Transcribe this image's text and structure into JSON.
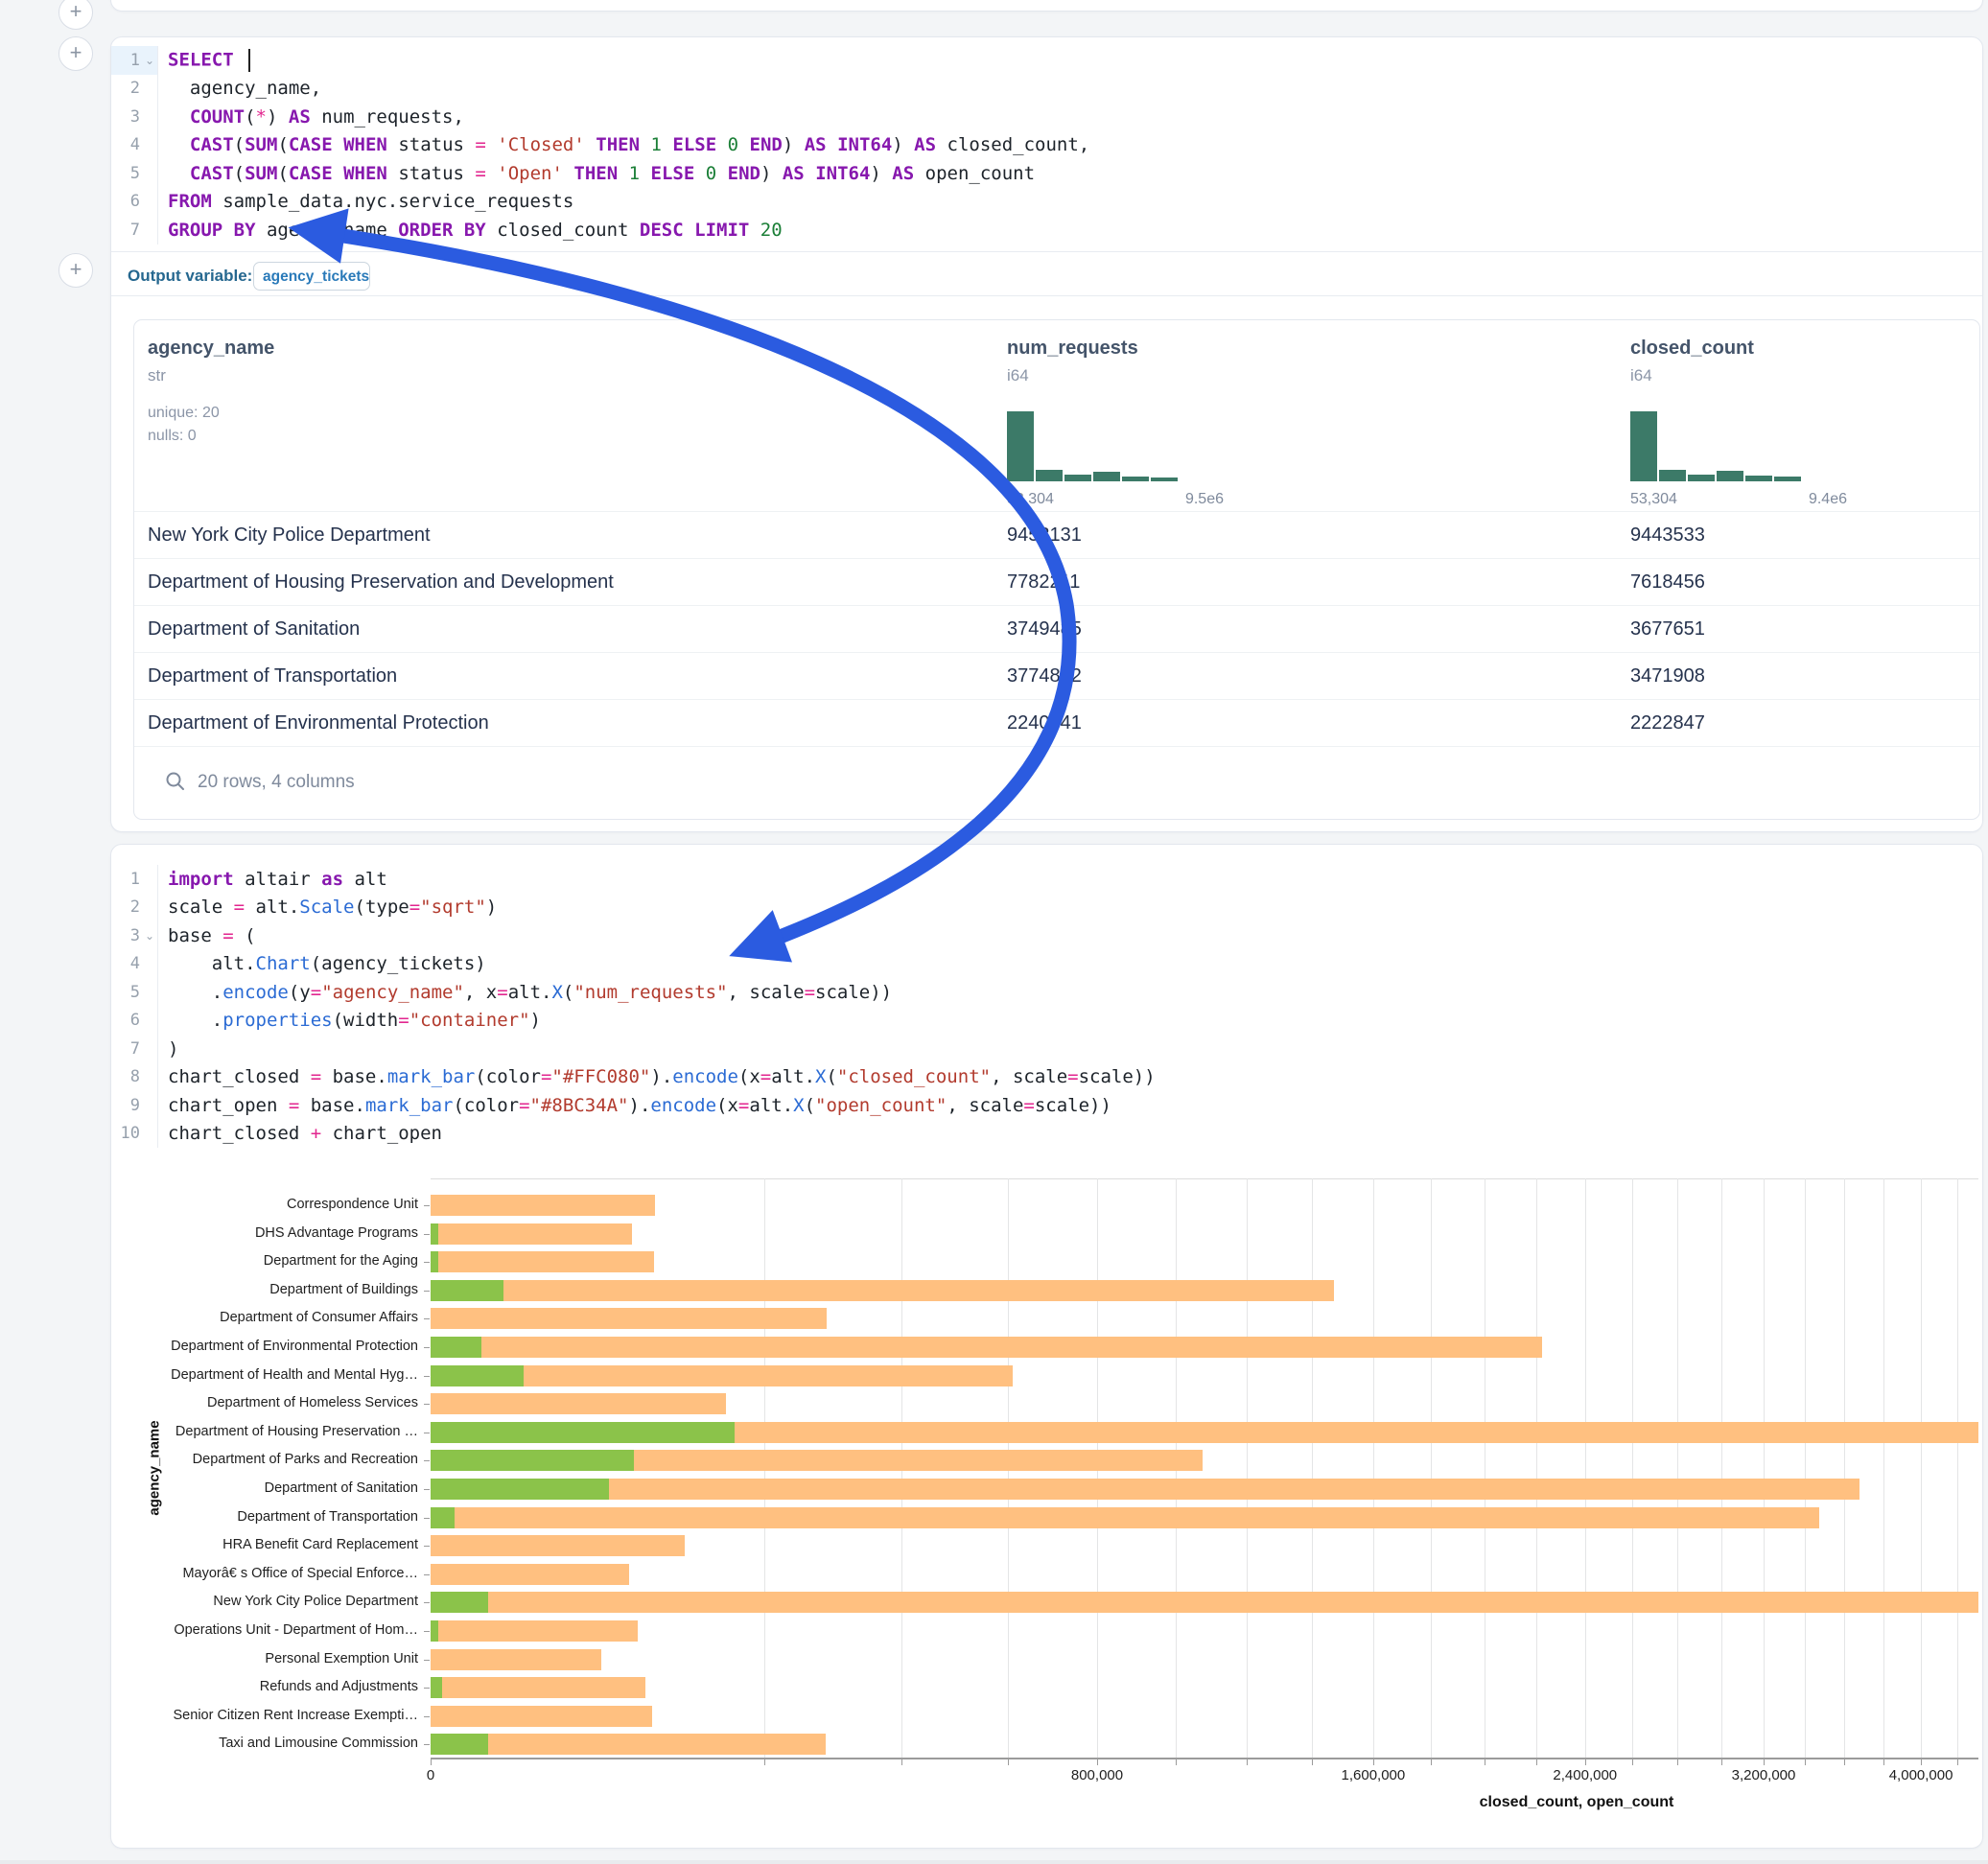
{
  "sql_cell": {
    "output_variable_label": "Output variable:",
    "output_variable_value": "agency_tickets",
    "lines": [
      {
        "n": "1",
        "chev": true,
        "active": true,
        "tokens": [
          [
            "k",
            "SELECT"
          ],
          [
            "t",
            " "
          ],
          [
            "caret",
            ""
          ]
        ]
      },
      {
        "n": "2",
        "tokens": [
          [
            "t",
            "  agency_name,"
          ]
        ]
      },
      {
        "n": "3",
        "tokens": [
          [
            "t",
            "  "
          ],
          [
            "k",
            "COUNT"
          ],
          [
            "t",
            "("
          ],
          [
            "o",
            "*"
          ],
          [
            "t",
            ") "
          ],
          [
            "k",
            "AS"
          ],
          [
            "t",
            " num_requests,"
          ]
        ]
      },
      {
        "n": "4",
        "tokens": [
          [
            "t",
            "  "
          ],
          [
            "k",
            "CAST"
          ],
          [
            "t",
            "("
          ],
          [
            "k",
            "SUM"
          ],
          [
            "t",
            "("
          ],
          [
            "k",
            "CASE"
          ],
          [
            "t",
            " "
          ],
          [
            "k",
            "WHEN"
          ],
          [
            "t",
            " status "
          ],
          [
            "o",
            "="
          ],
          [
            "t",
            " "
          ],
          [
            "s",
            "'Closed'"
          ],
          [
            "t",
            " "
          ],
          [
            "k",
            "THEN"
          ],
          [
            "t",
            " "
          ],
          [
            "n",
            "1"
          ],
          [
            "t",
            " "
          ],
          [
            "k",
            "ELSE"
          ],
          [
            "t",
            " "
          ],
          [
            "n",
            "0"
          ],
          [
            "t",
            " "
          ],
          [
            "k",
            "END"
          ],
          [
            "t",
            ") "
          ],
          [
            "k",
            "AS"
          ],
          [
            "t",
            " "
          ],
          [
            "k",
            "INT64"
          ],
          [
            "t",
            ") "
          ],
          [
            "k",
            "AS"
          ],
          [
            "t",
            " closed_count,"
          ]
        ]
      },
      {
        "n": "5",
        "tokens": [
          [
            "t",
            "  "
          ],
          [
            "k",
            "CAST"
          ],
          [
            "t",
            "("
          ],
          [
            "k",
            "SUM"
          ],
          [
            "t",
            "("
          ],
          [
            "k",
            "CASE"
          ],
          [
            "t",
            " "
          ],
          [
            "k",
            "WHEN"
          ],
          [
            "t",
            " status "
          ],
          [
            "o",
            "="
          ],
          [
            "t",
            " "
          ],
          [
            "s",
            "'Open'"
          ],
          [
            "t",
            " "
          ],
          [
            "k",
            "THEN"
          ],
          [
            "t",
            " "
          ],
          [
            "n",
            "1"
          ],
          [
            "t",
            " "
          ],
          [
            "k",
            "ELSE"
          ],
          [
            "t",
            " "
          ],
          [
            "n",
            "0"
          ],
          [
            "t",
            " "
          ],
          [
            "k",
            "END"
          ],
          [
            "t",
            ") "
          ],
          [
            "k",
            "AS"
          ],
          [
            "t",
            " "
          ],
          [
            "k",
            "INT64"
          ],
          [
            "t",
            ") "
          ],
          [
            "k",
            "AS"
          ],
          [
            "t",
            " open_count"
          ]
        ]
      },
      {
        "n": "6",
        "tokens": [
          [
            "k",
            "FROM"
          ],
          [
            "t",
            " sample_data.nyc.service_requests"
          ]
        ]
      },
      {
        "n": "7",
        "tokens": [
          [
            "k",
            "GROUP BY"
          ],
          [
            "t",
            " agency_name "
          ],
          [
            "k",
            "ORDER BY"
          ],
          [
            "t",
            " closed_count "
          ],
          [
            "k",
            "DESC"
          ],
          [
            "t",
            " "
          ],
          [
            "k",
            "LIMIT"
          ],
          [
            "t",
            " "
          ],
          [
            "n",
            "20"
          ]
        ]
      }
    ]
  },
  "table": {
    "hist_color": "#3C7A68",
    "columns": [
      {
        "name": "agency_name",
        "type": "str",
        "meta": [
          "unique: 20",
          "nulls: 0"
        ]
      },
      {
        "name": "num_requests",
        "type": "i64",
        "hist": {
          "heights": [
            1,
            0.16,
            0.09,
            0.14,
            0.07,
            0.06
          ],
          "min_label": "53,304",
          "max_label": "9.5e6"
        }
      },
      {
        "name": "closed_count",
        "type": "i64",
        "hist": {
          "heights": [
            1,
            0.16,
            0.09,
            0.15,
            0.08,
            0.07
          ],
          "min_label": "53,304",
          "max_label": "9.4e6"
        }
      }
    ],
    "rows": [
      [
        "New York City Police Department",
        "9453131",
        "9443533"
      ],
      [
        "Department of Housing Preservation and Development",
        "7782211",
        "7618456"
      ],
      [
        "Department of Sanitation",
        "3749485",
        "3677651"
      ],
      [
        "Department of Transportation",
        "3774892",
        "3471908"
      ],
      [
        "Department of Environmental Protection",
        "2240041",
        "2222847"
      ]
    ],
    "footer": "20 rows, 4 columns"
  },
  "python_cell": {
    "lines": [
      {
        "n": "1",
        "tokens": [
          [
            "k",
            "import"
          ],
          [
            "t",
            " altair "
          ],
          [
            "k",
            "as"
          ],
          [
            "t",
            " alt"
          ]
        ]
      },
      {
        "n": "2",
        "tokens": [
          [
            "t",
            "scale "
          ],
          [
            "o",
            "="
          ],
          [
            "t",
            " alt."
          ],
          [
            "f",
            "Scale"
          ],
          [
            "t",
            "(type"
          ],
          [
            "o",
            "="
          ],
          [
            "s",
            "\"sqrt\""
          ],
          [
            "t",
            ")"
          ]
        ]
      },
      {
        "n": "3",
        "chev": true,
        "tokens": [
          [
            "t",
            "base "
          ],
          [
            "o",
            "="
          ],
          [
            "t",
            " ("
          ]
        ]
      },
      {
        "n": "4",
        "tokens": [
          [
            "t",
            "    alt."
          ],
          [
            "f",
            "Chart"
          ],
          [
            "t",
            "(agency_tickets)"
          ]
        ]
      },
      {
        "n": "5",
        "tokens": [
          [
            "t",
            "    ."
          ],
          [
            "f",
            "encode"
          ],
          [
            "t",
            "(y"
          ],
          [
            "o",
            "="
          ],
          [
            "s",
            "\"agency_name\""
          ],
          [
            "t",
            ", x"
          ],
          [
            "o",
            "="
          ],
          [
            "t",
            "alt."
          ],
          [
            "f",
            "X"
          ],
          [
            "t",
            "("
          ],
          [
            "s",
            "\"num_requests\""
          ],
          [
            "t",
            ", scale"
          ],
          [
            "o",
            "="
          ],
          [
            "t",
            "scale))"
          ]
        ]
      },
      {
        "n": "6",
        "tokens": [
          [
            "t",
            "    ."
          ],
          [
            "f",
            "properties"
          ],
          [
            "t",
            "(width"
          ],
          [
            "o",
            "="
          ],
          [
            "s",
            "\"container\""
          ],
          [
            "t",
            ")"
          ]
        ]
      },
      {
        "n": "7",
        "tokens": [
          [
            "t",
            ")"
          ]
        ]
      },
      {
        "n": "8",
        "tokens": [
          [
            "t",
            "chart_closed "
          ],
          [
            "o",
            "="
          ],
          [
            "t",
            " base."
          ],
          [
            "f",
            "mark_bar"
          ],
          [
            "t",
            "(color"
          ],
          [
            "o",
            "="
          ],
          [
            "s",
            "\"#FFC080\""
          ],
          [
            "t",
            ")."
          ],
          [
            "f",
            "encode"
          ],
          [
            "t",
            "(x"
          ],
          [
            "o",
            "="
          ],
          [
            "t",
            "alt."
          ],
          [
            "f",
            "X"
          ],
          [
            "t",
            "("
          ],
          [
            "s",
            "\"closed_count\""
          ],
          [
            "t",
            ", scale"
          ],
          [
            "o",
            "="
          ],
          [
            "t",
            "scale))"
          ]
        ]
      },
      {
        "n": "9",
        "tokens": [
          [
            "t",
            "chart_open "
          ],
          [
            "o",
            "="
          ],
          [
            "t",
            " base."
          ],
          [
            "f",
            "mark_bar"
          ],
          [
            "t",
            "(color"
          ],
          [
            "o",
            "="
          ],
          [
            "s",
            "\"#8BC34A\""
          ],
          [
            "t",
            ")."
          ],
          [
            "f",
            "encode"
          ],
          [
            "t",
            "(x"
          ],
          [
            "o",
            "="
          ],
          [
            "t",
            "alt."
          ],
          [
            "f",
            "X"
          ],
          [
            "t",
            "("
          ],
          [
            "s",
            "\"open_count\""
          ],
          [
            "t",
            ", scale"
          ],
          [
            "o",
            "="
          ],
          [
            "t",
            "scale))"
          ]
        ]
      },
      {
        "n": "10",
        "tokens": [
          [
            "t",
            "chart_closed "
          ],
          [
            "o",
            "+"
          ],
          [
            "t",
            " chart_open"
          ]
        ]
      }
    ]
  },
  "chart_data": {
    "type": "bar",
    "orientation": "horizontal",
    "x_scale": "sqrt",
    "xlabel": "closed_count, open_count",
    "ylabel": "agency_name",
    "categories": [
      "Correspondence Unit",
      "DHS Advantage Programs",
      "Department for the Aging",
      "Department of Buildings",
      "Department of Consumer Affairs",
      "Department of Environmental Protection",
      "Department of Health and Mental Hyg…",
      "Department of Homeless Services",
      "Department of Housing Preservation …",
      "Department of Parks and Recreation",
      "Department of Sanitation",
      "Department of Transportation",
      "HRA Benefit Card Replacement",
      "Mayorâ€ s Office of Special Enforce…",
      "New York City Police Department",
      "Operations Unit - Department of Hom…",
      "Personal Exemption Unit",
      "Refunds and Adjustments",
      "Senior Citizen Rent Increase Exempti…",
      "Taxi and Limousine Commission"
    ],
    "series": [
      {
        "name": "closed_count",
        "color": "#FFC080",
        "values": [
          91000,
          73000,
          90000,
          1470000,
          282000,
          2222847,
          610000,
          157000,
          7618456,
          1073000,
          3677651,
          3471908,
          116000,
          71000,
          9443533,
          77000,
          52500,
          83000,
          88000,
          281000
        ]
      },
      {
        "name": "open_count",
        "color": "#8BC34A",
        "values": [
          0,
          100,
          100,
          9500,
          0,
          4600,
          15600,
          0,
          166000,
          74500,
          57000,
          1000,
          0,
          0,
          6000,
          100,
          0,
          250,
          0,
          6000
        ]
      }
    ],
    "x_tick_values": [
      0,
      800000,
      1600000,
      2400000,
      3200000,
      4000000
    ],
    "x_tick_labels": [
      "0",
      "800,000",
      "1,600,000",
      "2,400,000",
      "3,200,000",
      "4,000,000"
    ],
    "x_grid_interval": 200000,
    "x_visible_max": 4310000,
    "grid": true
  },
  "annotation": {
    "arrow_color": "#2B5BE0"
  }
}
